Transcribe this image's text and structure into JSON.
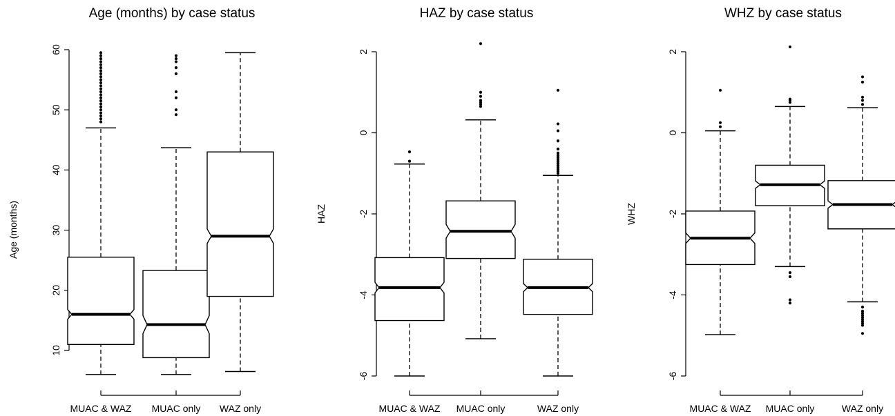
{
  "chart_data": [
    {
      "type": "boxplot",
      "title": "Age (months) by case status",
      "ylabel": "Age (months)",
      "ylim": [
        5,
        60
      ],
      "yticks": [
        10,
        20,
        30,
        40,
        50,
        60
      ],
      "ytick_labels": [
        "10",
        "20",
        "30",
        "40",
        "50",
        "60"
      ],
      "notched": true,
      "categories": [
        "MUAC & WAZ",
        "MUAC only",
        "WAZ only"
      ],
      "boxes": [
        {
          "whisker_low": 6,
          "q1": 11,
          "notch_low": 15.2,
          "median": 16,
          "notch_high": 16.8,
          "q3": 25.5,
          "whisker_high": 47,
          "outliers": [
            48,
            48.5,
            49,
            49.5,
            50,
            50.5,
            51,
            51.5,
            52,
            52.5,
            53,
            53.5,
            54,
            54.5,
            55,
            55.5,
            56,
            56.5,
            57,
            57.5,
            58,
            58.5,
            59,
            59.5
          ]
        },
        {
          "whisker_low": 6,
          "q1": 8.8,
          "notch_low": 12.8,
          "median": 14.3,
          "notch_high": 15.8,
          "q3": 23.3,
          "whisker_high": 43.7,
          "outliers": [
            49.2,
            50,
            52,
            53,
            56,
            57,
            58,
            58.5,
            59
          ]
        },
        {
          "whisker_low": 6.5,
          "q1": 19,
          "notch_low": 27.8,
          "median": 29,
          "notch_high": 30.2,
          "q3": 43,
          "whisker_high": 59.5,
          "outliers": []
        }
      ]
    },
    {
      "type": "boxplot",
      "title": "HAZ by case status",
      "ylabel": "HAZ",
      "ylim": [
        -6,
        2.2
      ],
      "yticks": [
        -6,
        -4,
        -2,
        0,
        2
      ],
      "ytick_labels": [
        "-6",
        "-4",
        "-2",
        "0",
        "2"
      ],
      "notched": true,
      "categories": [
        "MUAC & WAZ",
        "MUAC only",
        "WAZ only"
      ],
      "boxes": [
        {
          "whisker_low": -6,
          "q1": -4.63,
          "notch_low": -3.95,
          "median": -3.82,
          "notch_high": -3.69,
          "q3": -3.08,
          "whisker_high": -0.77,
          "outliers": [
            -0.7,
            -0.47
          ]
        },
        {
          "whisker_low": -5.08,
          "q1": -3.1,
          "notch_low": -2.6,
          "median": -2.43,
          "notch_high": -2.26,
          "q3": -1.68,
          "whisker_high": 0.32,
          "outliers": [
            0.65,
            0.7,
            0.75,
            0.8,
            0.9,
            1.0,
            2.2
          ]
        },
        {
          "whisker_low": -6,
          "q1": -4.48,
          "notch_low": -3.92,
          "median": -3.82,
          "notch_high": -3.72,
          "q3": -3.12,
          "whisker_high": -1.05,
          "outliers": [
            -1.0,
            -0.95,
            -0.9,
            -0.85,
            -0.8,
            -0.75,
            -0.7,
            -0.65,
            -0.6,
            -0.55,
            -0.5,
            -0.4,
            -0.2,
            0.05,
            0.22,
            1.05
          ]
        }
      ]
    },
    {
      "type": "boxplot",
      "title": "WHZ by case status",
      "ylabel": "WHZ",
      "ylim": [
        -6,
        2.1
      ],
      "yticks": [
        -6,
        -4,
        -2,
        0,
        2
      ],
      "ytick_labels": [
        "-6",
        "-4",
        "-2",
        "0",
        "2"
      ],
      "notched": true,
      "categories": [
        "MUAC & WAZ",
        "MUAC only",
        "WAZ only"
      ],
      "boxes": [
        {
          "whisker_low": -4.98,
          "q1": -3.25,
          "notch_low": -2.73,
          "median": -2.6,
          "notch_high": -2.47,
          "q3": -1.93,
          "whisker_high": 0.05,
          "outliers": [
            0.15,
            0.25,
            1.05
          ]
        },
        {
          "whisker_low": -3.3,
          "q1": -1.8,
          "notch_low": -1.37,
          "median": -1.28,
          "notch_high": -1.19,
          "q3": -0.8,
          "whisker_high": 0.65,
          "outliers": [
            0.75,
            0.8,
            0.83,
            2.12,
            -3.45,
            -3.55,
            -4.12,
            -4.2
          ]
        },
        {
          "whisker_low": -4.17,
          "q1": -2.37,
          "notch_low": -1.86,
          "median": -1.77,
          "notch_high": -1.68,
          "q3": -1.18,
          "whisker_high": 0.62,
          "outliers": [
            0.7,
            0.8,
            0.88,
            1.25,
            1.38,
            -4.3,
            -4.4,
            -4.45,
            -4.5,
            -4.55,
            -4.6,
            -4.65,
            -4.7,
            -4.75,
            -4.95
          ]
        }
      ]
    }
  ]
}
